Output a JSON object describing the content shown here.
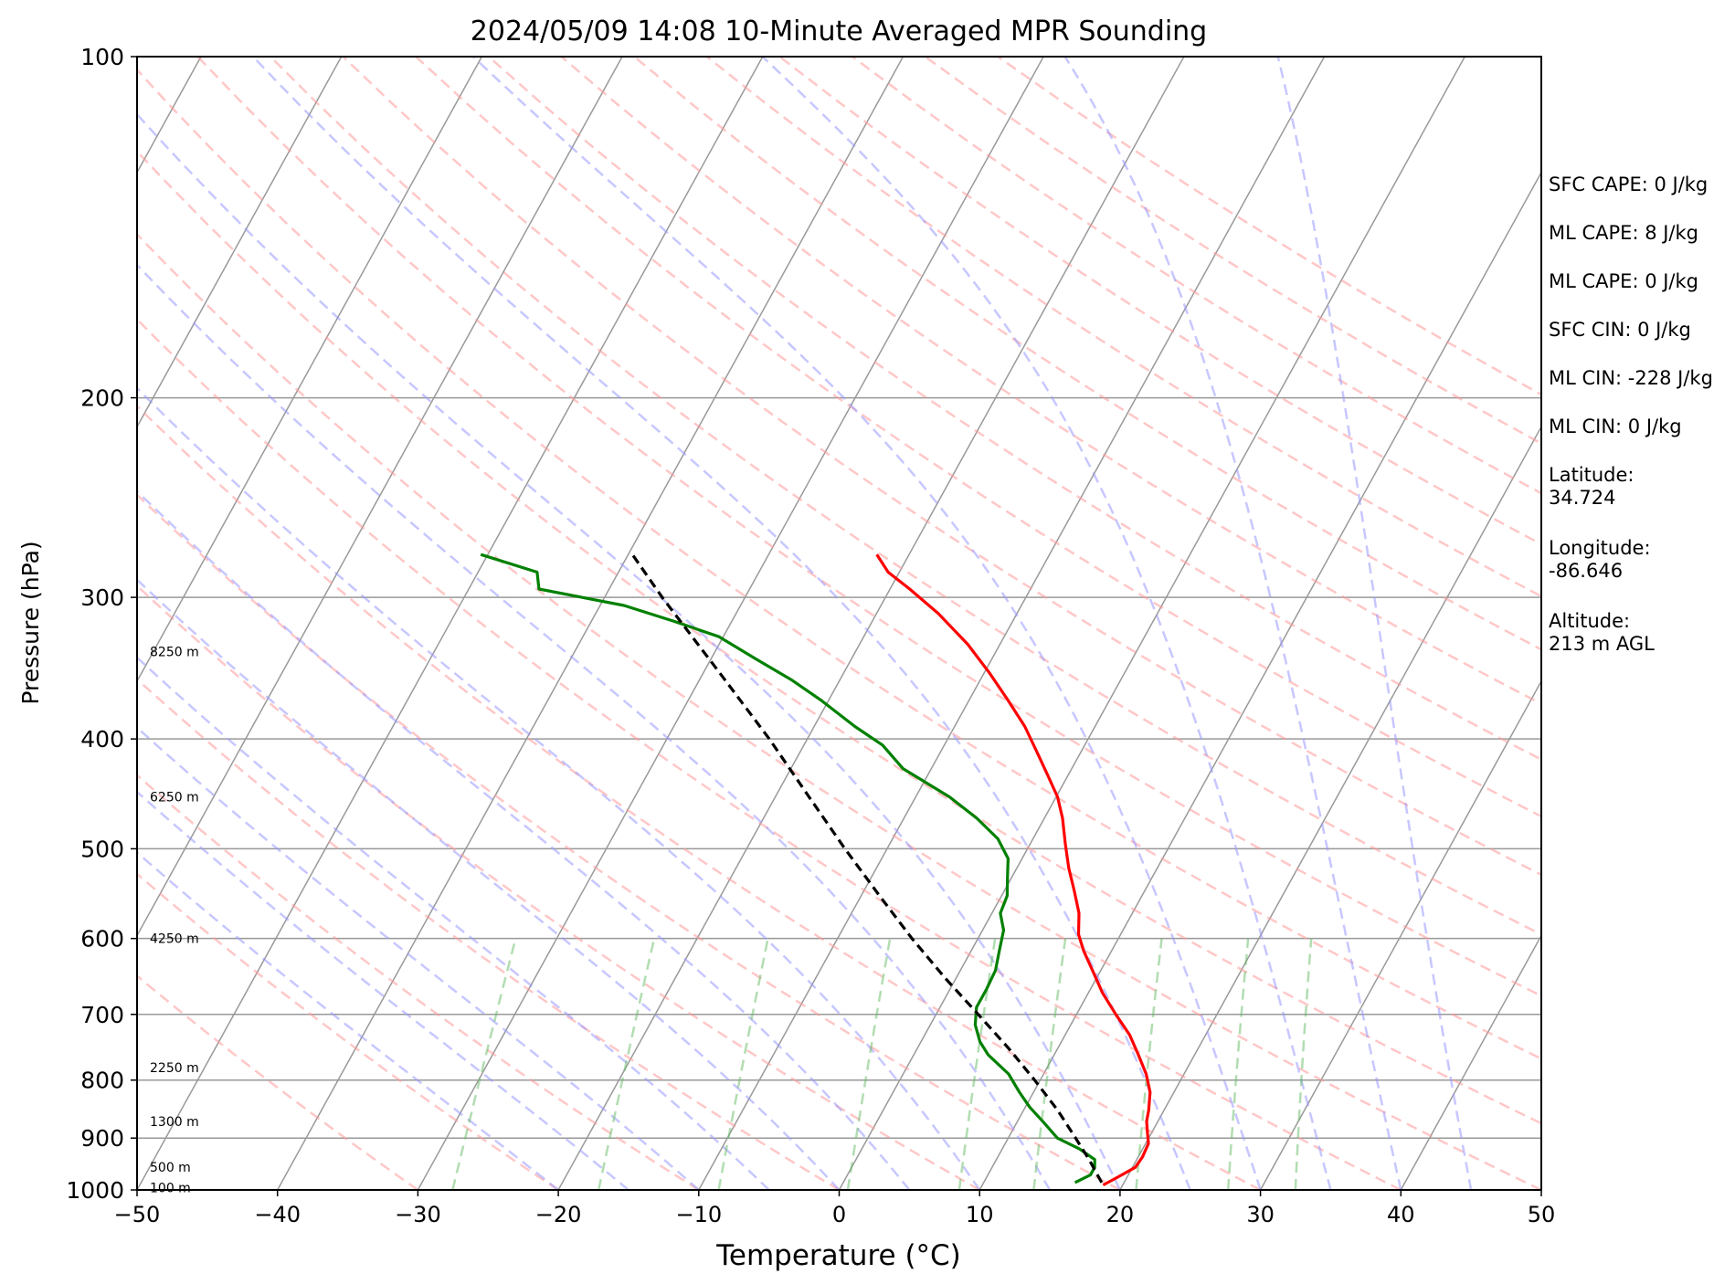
{
  "chart_data": {
    "type": "line",
    "title": "2024/05/09 14:08 10-Minute Averaged MPR Sounding",
    "xlabel": "Temperature (°C)",
    "ylabel": "Pressure (hPa)",
    "xlim": [
      -50,
      50
    ],
    "ylim": [
      1000,
      100
    ],
    "y_scale": "log",
    "skew": true,
    "grid": true,
    "x_ticks": [
      -50,
      -40,
      -30,
      -20,
      -10,
      0,
      10,
      20,
      30,
      40,
      50
    ],
    "x_tick_labels": [
      "−50",
      "−40",
      "−30",
      "−20",
      "−10",
      "0",
      "10",
      "20",
      "30",
      "40",
      "50"
    ],
    "y_ticks": [
      1000,
      900,
      800,
      700,
      600,
      500,
      400,
      300,
      200,
      100
    ],
    "y_tick_labels": [
      "1000",
      "900",
      "800",
      "700",
      "600",
      "500",
      "400",
      "300",
      "200",
      "100"
    ],
    "height_labels": [
      {
        "p": 995,
        "text": "100 m"
      },
      {
        "p": 955,
        "text": "500 m"
      },
      {
        "p": 870,
        "text": "1300 m"
      },
      {
        "p": 780,
        "text": "2250 m"
      },
      {
        "p": 600,
        "text": "4250 m"
      },
      {
        "p": 450,
        "text": "6250 m"
      },
      {
        "p": 335,
        "text": "8250 m"
      }
    ],
    "series": [
      {
        "color": "#ff0000",
        "points": [
          [
            990,
            18.6
          ],
          [
            975,
            19.3
          ],
          [
            955,
            20.2
          ],
          [
            935,
            20.3
          ],
          [
            910,
            20.2
          ],
          [
            890,
            19.7
          ],
          [
            870,
            19.2
          ],
          [
            850,
            18.9
          ],
          [
            820,
            18.3
          ],
          [
            790,
            17.3
          ],
          [
            760,
            16.0
          ],
          [
            730,
            14.6
          ],
          [
            700,
            12.8
          ],
          [
            670,
            11.0
          ],
          [
            640,
            9.4
          ],
          [
            615,
            8.0
          ],
          [
            595,
            7.0
          ],
          [
            570,
            6.2
          ],
          [
            545,
            5.0
          ],
          [
            520,
            3.7
          ],
          [
            495,
            2.5
          ],
          [
            470,
            1.3
          ],
          [
            450,
            0.1
          ],
          [
            430,
            -1.5
          ],
          [
            410,
            -3.2
          ],
          [
            390,
            -5.0
          ],
          [
            370,
            -7.2
          ],
          [
            350,
            -9.6
          ],
          [
            330,
            -12.3
          ],
          [
            310,
            -15.6
          ],
          [
            295,
            -18.6
          ],
          [
            285,
            -20.8
          ],
          [
            275,
            -22.3
          ]
        ]
      },
      {
        "color": "#008000",
        "points": [
          [
            985,
            16.5
          ],
          [
            970,
            17.3
          ],
          [
            955,
            17.3
          ],
          [
            940,
            17.0
          ],
          [
            920,
            15.5
          ],
          [
            900,
            13.5
          ],
          [
            870,
            11.8
          ],
          [
            845,
            10.3
          ],
          [
            820,
            9.0
          ],
          [
            790,
            7.5
          ],
          [
            760,
            5.3
          ],
          [
            740,
            4.2
          ],
          [
            715,
            3.2
          ],
          [
            690,
            2.6
          ],
          [
            665,
            2.6
          ],
          [
            640,
            2.5
          ],
          [
            615,
            2.0
          ],
          [
            590,
            1.5
          ],
          [
            570,
            0.6
          ],
          [
            550,
            0.4
          ],
          [
            530,
            -0.3
          ],
          [
            510,
            -1.0
          ],
          [
            490,
            -2.5
          ],
          [
            470,
            -4.8
          ],
          [
            450,
            -7.6
          ],
          [
            435,
            -10.2
          ],
          [
            425,
            -12.0
          ],
          [
            405,
            -14.4
          ],
          [
            390,
            -17.1
          ],
          [
            370,
            -20.5
          ],
          [
            355,
            -23.4
          ],
          [
            340,
            -26.8
          ],
          [
            325,
            -30.3
          ],
          [
            315,
            -34.1
          ],
          [
            305,
            -38.3
          ],
          [
            295,
            -45.0
          ],
          [
            285,
            -45.8
          ],
          [
            275,
            -50.5
          ]
        ]
      },
      {
        "color": "#000000",
        "dashed": true,
        "points": [
          [
            985,
            18.4
          ],
          [
            940,
            16.6
          ],
          [
            900,
            14.8
          ],
          [
            850,
            12.4
          ],
          [
            800,
            9.6
          ],
          [
            750,
            6.5
          ],
          [
            700,
            3.0
          ],
          [
            650,
            -0.8
          ],
          [
            600,
            -4.7
          ],
          [
            550,
            -8.7
          ],
          [
            500,
            -13.0
          ],
          [
            450,
            -17.6
          ],
          [
            400,
            -22.7
          ],
          [
            350,
            -28.8
          ],
          [
            300,
            -35.9
          ],
          [
            275,
            -39.7
          ]
        ]
      }
    ]
  },
  "side_panel": {
    "sfc_cape": "SFC CAPE: 0 J/kg",
    "ml_cape_1": "ML CAPE: 8 J/kg",
    "ml_cape_2": "ML CAPE: 0 J/kg",
    "sfc_cin": "SFC CIN: 0 J/kg",
    "ml_cin_1": "ML CIN: -228 J/kg",
    "ml_cin_2": "ML CIN: 0 J/kg",
    "latitude_label": "Latitude:",
    "latitude_value": "34.724",
    "longitude_label": "Longitude:",
    "longitude_value": "-86.646",
    "altitude_label": "Altitude:",
    "altitude_value": "213 m AGL"
  }
}
